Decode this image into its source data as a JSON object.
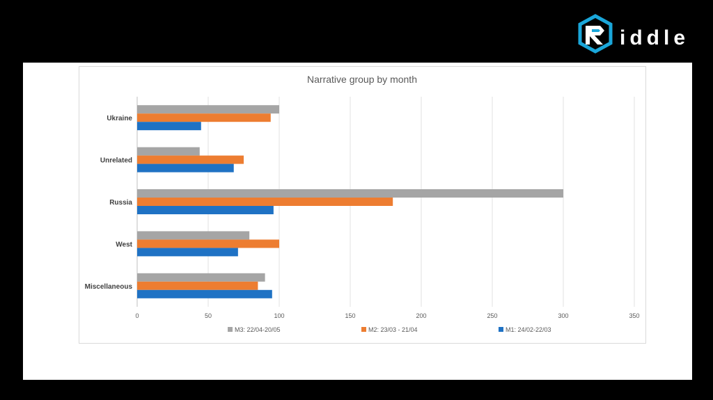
{
  "brand": {
    "name": "iddle",
    "accent": "#1aa6d9",
    "icon": "riddle-logo-icon"
  },
  "chart_data": {
    "type": "bar",
    "orientation": "horizontal",
    "title": "Narrative group by month",
    "xlabel": "",
    "ylabel": "",
    "categories": [
      "Ukraine",
      "Unrelated",
      "Russia",
      "West",
      "Miscellaneous"
    ],
    "xlim": [
      0,
      350
    ],
    "x_ticks": [
      0,
      50,
      100,
      150,
      200,
      250,
      300,
      350
    ],
    "grid": "vertical",
    "legend_position": "bottom",
    "series": [
      {
        "name": "M3: 22/04-20/05",
        "color": "#a5a5a5",
        "values": [
          100,
          44,
          300,
          79,
          90
        ]
      },
      {
        "name": "M2: 23/03 - 21/04",
        "color": "#ed7d31",
        "values": [
          94,
          75,
          180,
          100,
          85
        ]
      },
      {
        "name": "M1: 24/02-22/03",
        "color": "#1f72c4",
        "values": [
          45,
          68,
          96,
          71,
          95
        ]
      }
    ]
  }
}
